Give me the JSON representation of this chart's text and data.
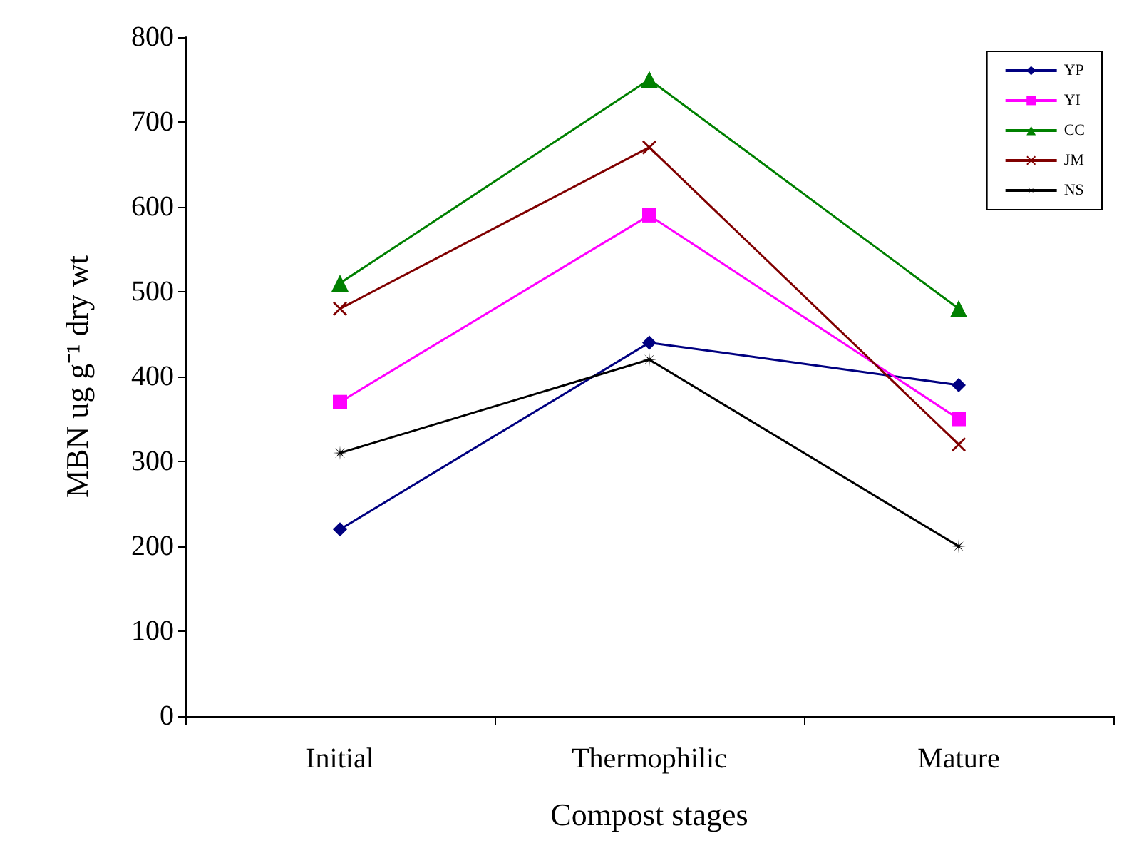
{
  "chart_data": {
    "type": "line",
    "xlabel": "Compost stages",
    "ylabel": "MBN ug g⁻¹ dry wt",
    "categories": [
      "Initial",
      "Thermophilic",
      "Mature"
    ],
    "series": [
      {
        "name": "YP",
        "color": "#000080",
        "marker": "diamond",
        "values": [
          220,
          440,
          390
        ]
      },
      {
        "name": "YI",
        "color": "#ff00ff",
        "marker": "square",
        "values": [
          370,
          590,
          350
        ]
      },
      {
        "name": "CC",
        "color": "#008000",
        "marker": "triangle",
        "values": [
          510,
          750,
          480
        ]
      },
      {
        "name": "JM",
        "color": "#800000",
        "marker": "cross",
        "values": [
          480,
          670,
          320
        ]
      },
      {
        "name": "NS",
        "color": "#000000",
        "marker": "star",
        "values": [
          310,
          420,
          200
        ]
      }
    ],
    "ylim": [
      0,
      800
    ],
    "yticks": [
      0,
      100,
      200,
      300,
      400,
      500,
      600,
      700,
      800
    ],
    "grid": false,
    "legend": "top right"
  }
}
